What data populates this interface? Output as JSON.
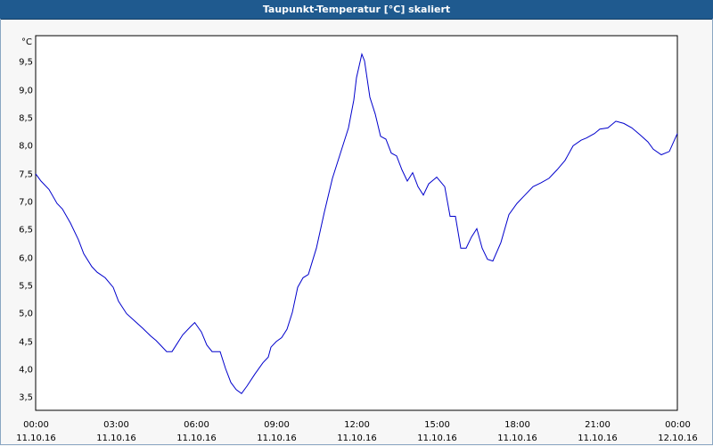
{
  "window": {
    "title": "Taupunkt-Temperatur [°C] skaliert"
  },
  "chart_data": {
    "type": "line",
    "title": "Taupunkt-Temperatur [°C] skaliert",
    "ylabel": "°C",
    "xlabel": "",
    "ylim": [
      3.25,
      9.95
    ],
    "yticks": [
      3.5,
      4.0,
      4.5,
      5.0,
      5.5,
      6.0,
      6.5,
      7.0,
      7.5,
      8.0,
      8.5,
      9.0,
      9.5
    ],
    "ytick_labels": [
      "3,5",
      "4,0",
      "4,5",
      "5,0",
      "5,5",
      "6,0",
      "6,5",
      "7,0",
      "7,5",
      "8,0",
      "8,5",
      "9,0",
      "9,5"
    ],
    "xlim": [
      0,
      24
    ],
    "xticks": [
      0,
      3,
      6,
      9,
      12,
      15,
      18,
      21,
      24
    ],
    "xtick_labels": [
      [
        "00:00",
        "11.10.16"
      ],
      [
        "03:00",
        "11.10.16"
      ],
      [
        "06:00",
        "11.10.16"
      ],
      [
        "09:00",
        "11.10.16"
      ],
      [
        "12:00",
        "11.10.16"
      ],
      [
        "15:00",
        "11.10.16"
      ],
      [
        "18:00",
        "11.10.16"
      ],
      [
        "21:00",
        "11.10.16"
      ],
      [
        "00:00",
        "12.10.16"
      ]
    ],
    "grid": true,
    "line_color": "#0000cc",
    "series": [
      {
        "x": [
          0,
          0.2,
          0.5,
          0.8,
          1.0,
          1.3,
          1.6,
          1.8,
          2.1,
          2.3,
          2.6,
          2.9,
          3.1,
          3.4,
          3.7,
          4.0,
          4.3,
          4.5,
          4.7,
          4.9,
          5.1,
          5.3,
          5.5,
          5.8,
          5.95,
          6.2,
          6.4,
          6.6,
          6.9,
          7.1,
          7.3,
          7.5,
          7.7,
          7.9,
          8.2,
          8.5,
          8.7,
          8.8,
          9.0,
          9.2,
          9.4,
          9.6,
          9.8,
          10.0,
          10.2,
          10.5,
          10.8,
          11.1,
          11.4,
          11.7,
          11.9,
          12.0,
          12.2,
          12.3,
          12.5,
          12.7,
          12.9,
          13.1,
          13.3,
          13.5,
          13.7,
          13.9,
          14.1,
          14.3,
          14.5,
          14.7,
          14.9,
          15.0,
          15.3,
          15.5,
          15.7,
          15.9,
          16.1,
          16.3,
          16.5,
          16.7,
          16.9,
          17.1,
          17.4,
          17.7,
          18.0,
          18.3,
          18.6,
          18.9,
          19.2,
          19.5,
          19.8,
          20.1,
          20.4,
          20.6,
          20.9,
          21.1,
          21.4,
          21.7,
          22.0,
          22.3,
          22.6,
          22.9,
          23.1,
          23.4,
          23.7,
          24.0
        ],
        "y": [
          7.48,
          7.35,
          7.2,
          6.95,
          6.85,
          6.6,
          6.3,
          6.05,
          5.82,
          5.72,
          5.62,
          5.45,
          5.2,
          4.98,
          4.85,
          4.72,
          4.58,
          4.5,
          4.4,
          4.3,
          4.3,
          4.45,
          4.6,
          4.75,
          4.82,
          4.65,
          4.42,
          4.3,
          4.3,
          4.0,
          3.75,
          3.62,
          3.55,
          3.68,
          3.9,
          4.1,
          4.2,
          4.38,
          4.48,
          4.55,
          4.7,
          5.0,
          5.45,
          5.62,
          5.68,
          6.15,
          6.8,
          7.4,
          7.85,
          8.3,
          8.8,
          9.2,
          9.62,
          9.5,
          8.85,
          8.55,
          8.15,
          8.1,
          7.85,
          7.8,
          7.55,
          7.35,
          7.5,
          7.25,
          7.1,
          7.3,
          7.38,
          7.42,
          7.25,
          6.72,
          6.72,
          6.15,
          6.15,
          6.35,
          6.5,
          6.15,
          5.95,
          5.92,
          6.25,
          6.75,
          6.95,
          7.1,
          7.25,
          7.32,
          7.4,
          7.55,
          7.72,
          7.98,
          8.08,
          8.12,
          8.2,
          8.28,
          8.3,
          8.42,
          8.38,
          8.3,
          8.18,
          8.05,
          7.92,
          7.82,
          7.88,
          8.2
        ]
      }
    ]
  }
}
